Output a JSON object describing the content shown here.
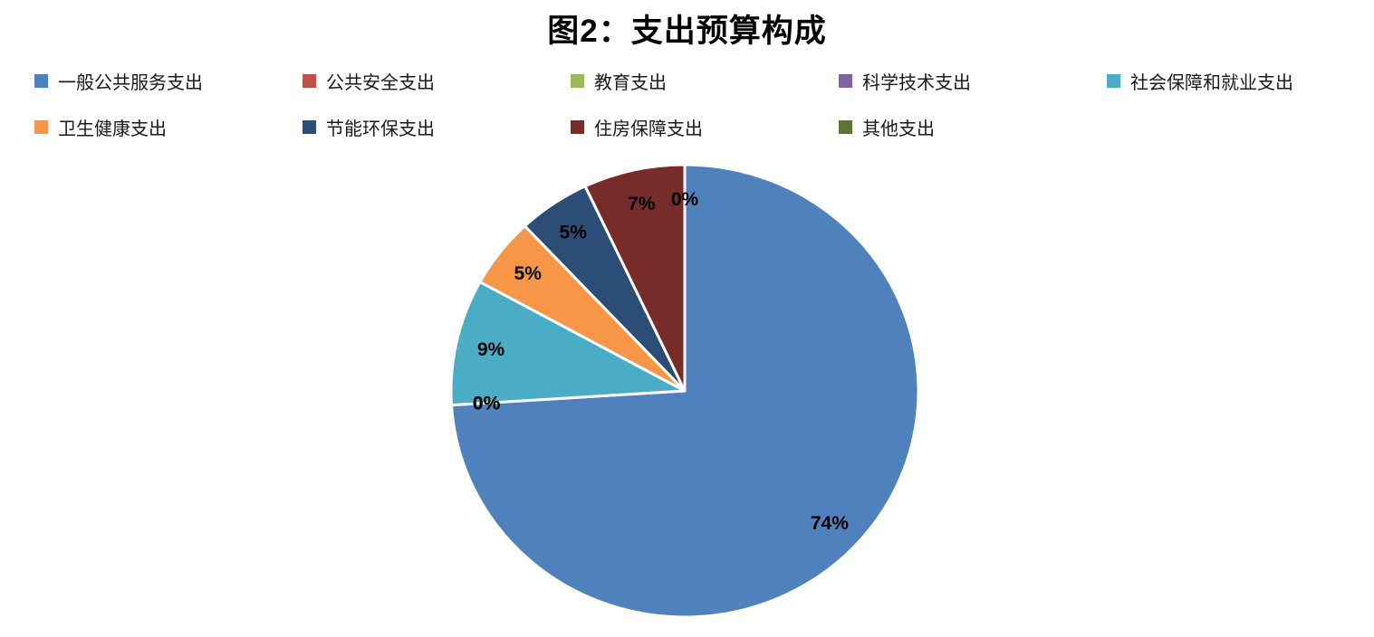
{
  "title": "图2：支出预算构成",
  "chart_data": {
    "type": "pie",
    "title": "图2：支出预算构成",
    "legend_position": "top",
    "start_angle_deg": 0,
    "direction": "clockwise",
    "slice_border_color": "#ffffff",
    "segments": [
      {
        "label": "一般公共服务支出",
        "value": 74,
        "data_label": "74%",
        "color": "#4F81BD"
      },
      {
        "label": "公共安全支出",
        "value": 0,
        "data_label": "0%",
        "color": "#C0504D"
      },
      {
        "label": "教育支出",
        "value": 0,
        "data_label": "0%",
        "color": "#9BBB59"
      },
      {
        "label": "科学技术支出",
        "value": 0,
        "data_label": "0%",
        "color": "#8064A2"
      },
      {
        "label": "社会保障和就业支出",
        "value": 9,
        "data_label": "9%",
        "color": "#4BACC6"
      },
      {
        "label": "卫生健康支出",
        "value": 5,
        "data_label": "5%",
        "color": "#F79646"
      },
      {
        "label": "节能环保支出",
        "value": 5,
        "data_label": "5%",
        "color": "#2C4D75"
      },
      {
        "label": "住房保障支出",
        "value": 7,
        "data_label": "7%",
        "color": "#772C2A"
      },
      {
        "label": "其他支出",
        "value": 0,
        "data_label": "0%",
        "color": "#5F7530"
      }
    ]
  }
}
